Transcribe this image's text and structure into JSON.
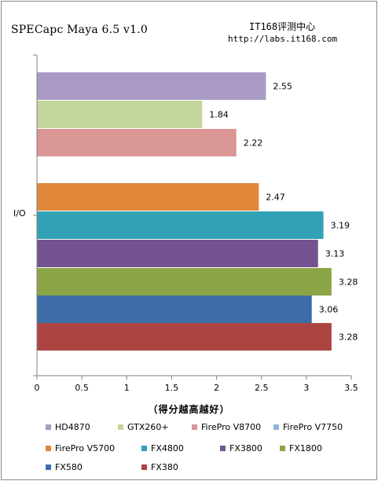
{
  "header": {
    "title": "SPECapc Maya 6.5 v1.0",
    "source_name": "IT168评测中心",
    "source_url": "http://labs.it168.com"
  },
  "chart_data": {
    "type": "bar",
    "orientation": "horizontal",
    "title": "SPECapc Maya 6.5 v1.0",
    "categories": [
      "I/O"
    ],
    "xlabel": "（得分越高越好）",
    "ylabel": "",
    "xlim": [
      0,
      3.5
    ],
    "xticks": [
      "0",
      "0.5",
      "1",
      "1.5",
      "2",
      "2.5",
      "3",
      "3.5"
    ],
    "grid": false,
    "legend_position": "bottom",
    "series": [
      {
        "name": "HD4870",
        "values": [
          2.55
        ],
        "label": "2.55",
        "color": "#a99bc6"
      },
      {
        "name": "GTX260+",
        "values": [
          1.84
        ],
        "label": "1.84",
        "color": "#c3d69b"
      },
      {
        "name": "FirePro V8700",
        "values": [
          2.22
        ],
        "label": "2.22",
        "color": "#d99694"
      },
      {
        "name": "FirePro V7750",
        "values": [
          null
        ],
        "label": "",
        "color": "#95b3d7"
      },
      {
        "name": "FirePro V5700",
        "values": [
          2.47
        ],
        "label": "2.47",
        "color": "#e0873a"
      },
      {
        "name": "FX4800",
        "values": [
          3.19
        ],
        "label": "3.19",
        "color": "#31a2b5"
      },
      {
        "name": "FX3800",
        "values": [
          3.13
        ],
        "label": "3.13",
        "color": "#72538f"
      },
      {
        "name": "FX1800",
        "values": [
          3.28
        ],
        "label": "3.28",
        "color": "#8ba546"
      },
      {
        "name": "FX580",
        "values": [
          3.06
        ],
        "label": "3.06",
        "color": "#3e6ea8"
      },
      {
        "name": "FX380",
        "values": [
          3.28
        ],
        "label": "3.28",
        "color": "#ac4542"
      }
    ]
  }
}
